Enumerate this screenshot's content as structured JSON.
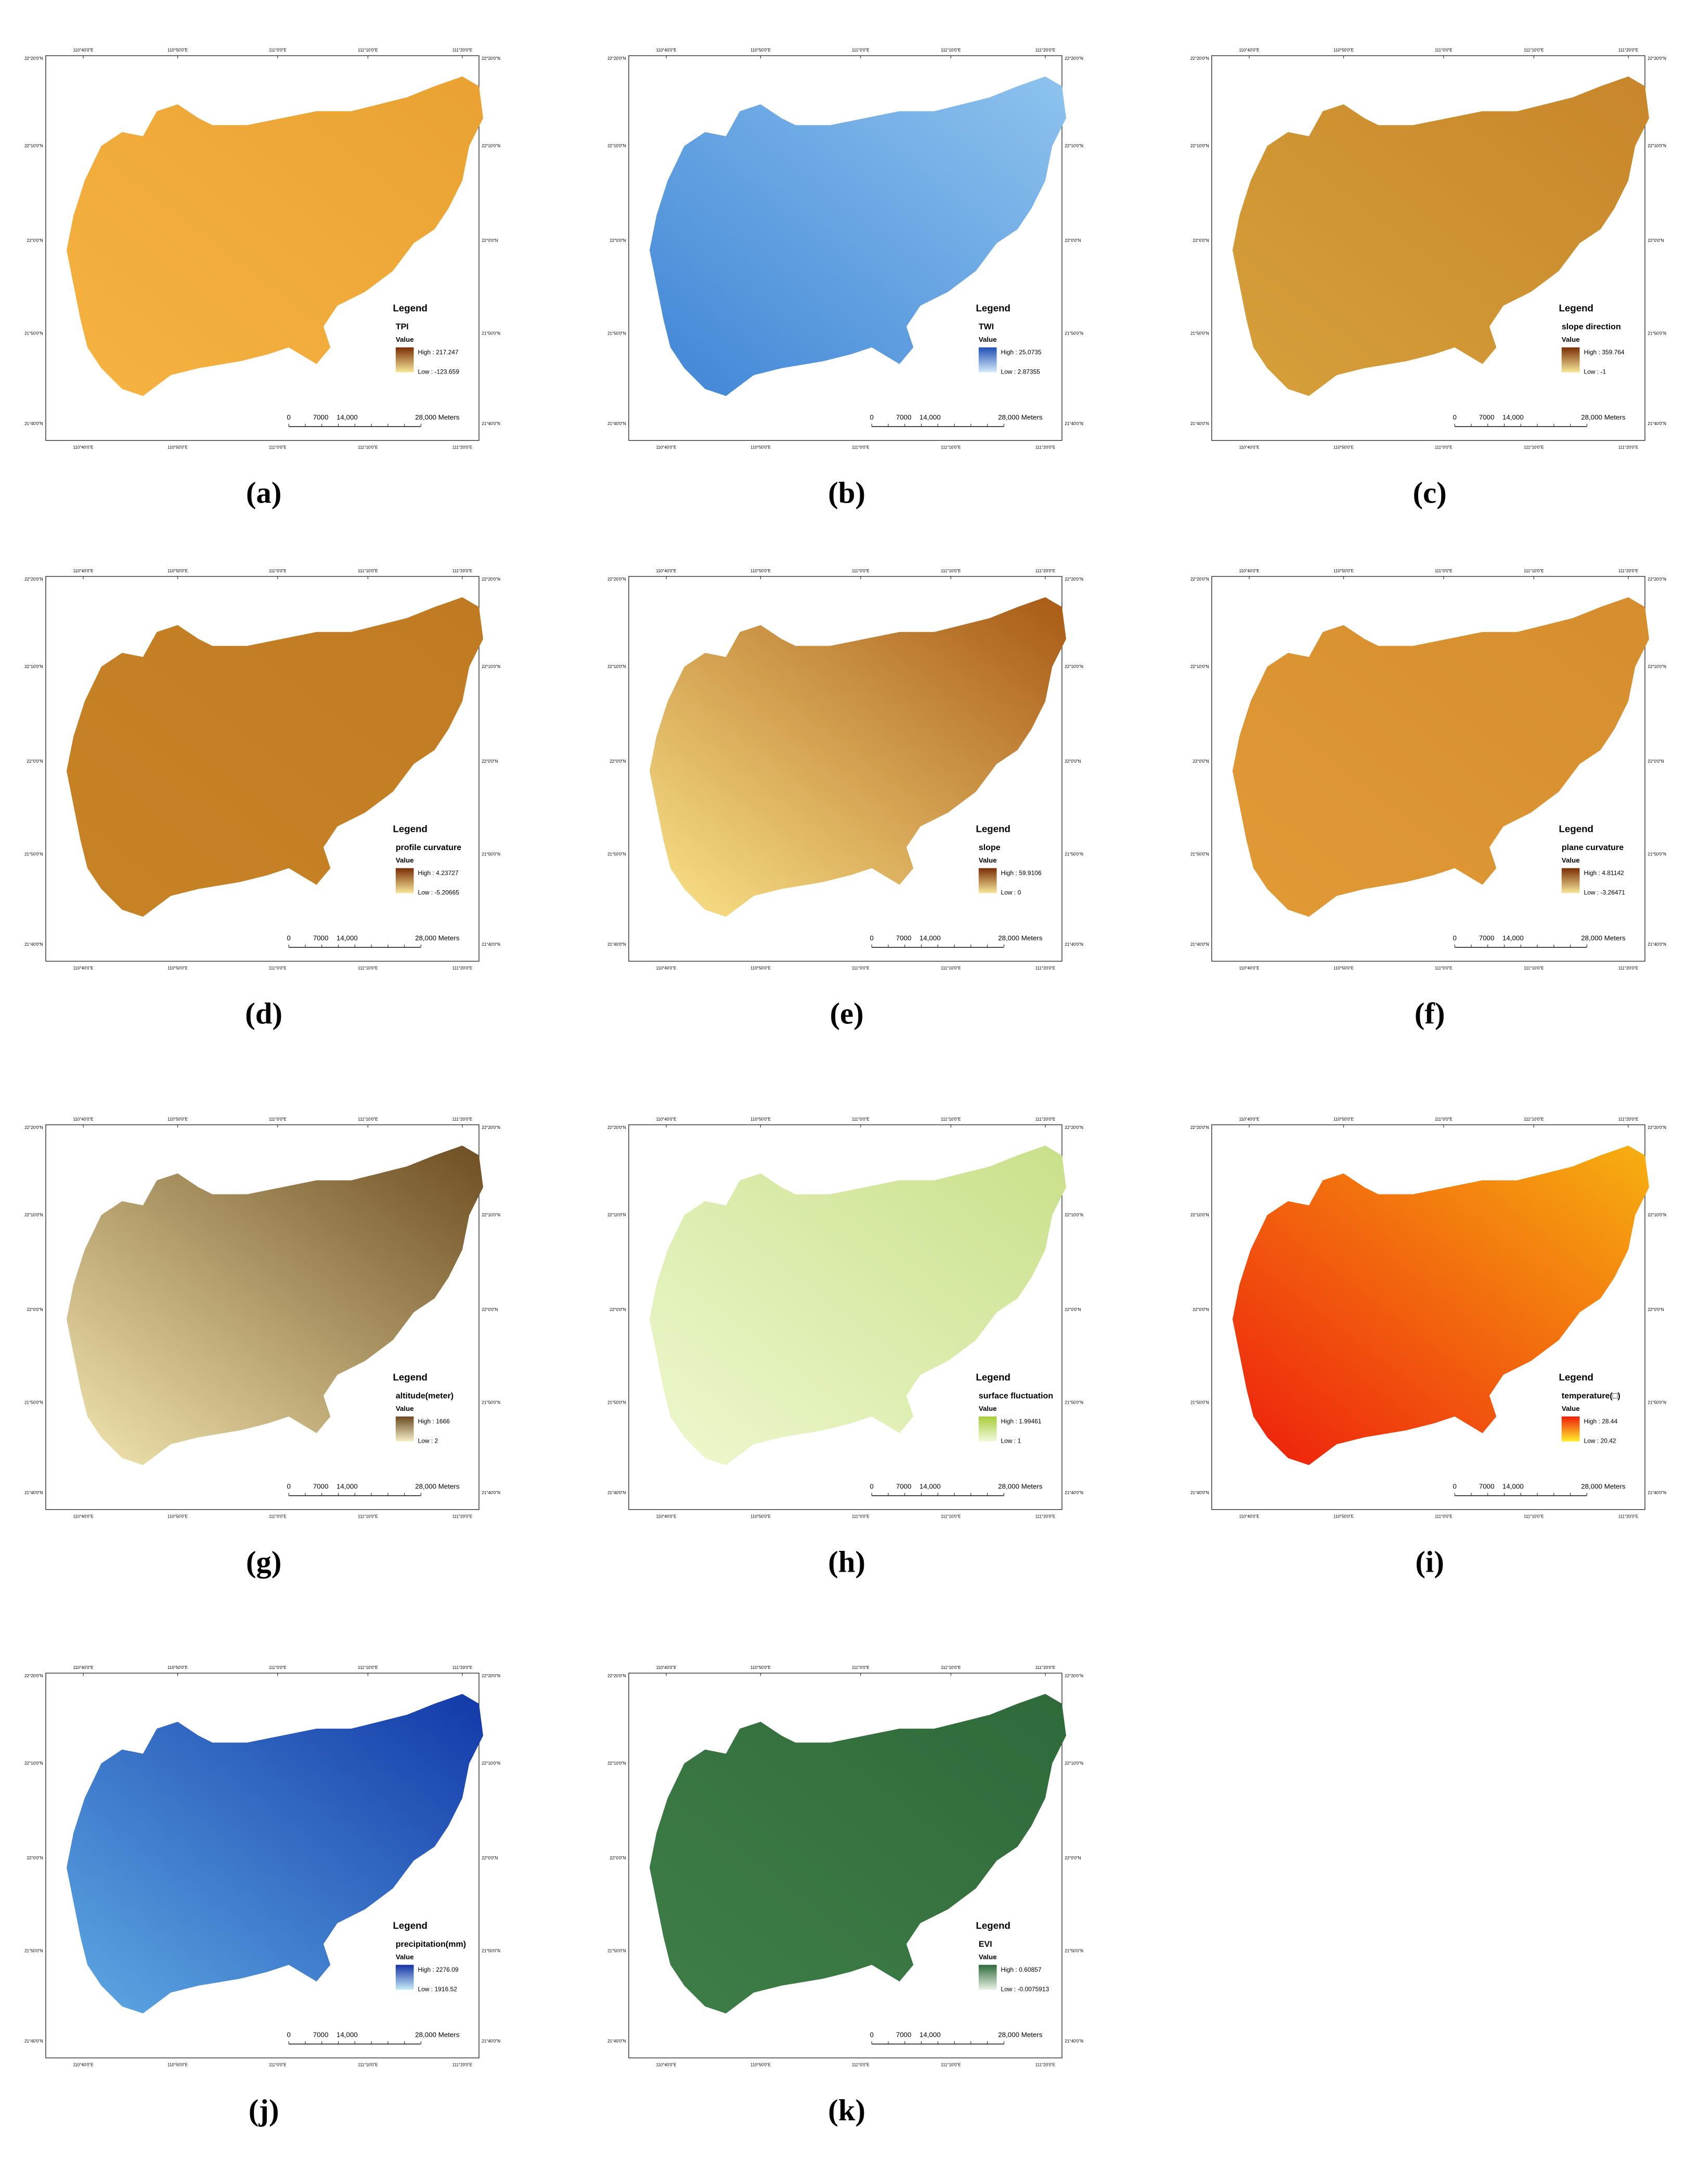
{
  "axes": {
    "lon": [
      "110°40'0\"E",
      "110°50'0\"E",
      "111°0'0\"E",
      "111°10'0\"E",
      "111°20'0\"E"
    ],
    "lat": [
      "22°20'0\"N",
      "22°10'0\"N",
      "22°0'0\"N",
      "21°50'0\"N",
      "21°40'0\"N"
    ]
  },
  "scale_bar": [
    "0",
    "7000",
    "14,000",
    "28,000 Meters"
  ],
  "panels": [
    {
      "caption": "(a)",
      "legend": "Legend",
      "layer": "TPI",
      "value": "Value",
      "high": "High : 217.247",
      "low": "Low : -123.659",
      "map_colors": [
        "#f6b341",
        "#e9a232"
      ],
      "ramp": [
        "#f8e79a",
        "#7a2e05"
      ]
    },
    {
      "caption": "(b)",
      "legend": "Legend",
      "layer": "TWI",
      "value": "Value",
      "high": "High : 25.0735",
      "low": "Low : 2.87355",
      "map_colors": [
        "#3f85d6",
        "#8ec3ee"
      ],
      "ramp": [
        "#d6ecfb",
        "#1f4fb3"
      ]
    },
    {
      "caption": "(c)",
      "legend": "Legend",
      "layer": "slope direction",
      "value": "Value",
      "high": "High : 359.764",
      "low": "Low : -1",
      "map_colors": [
        "#d6a03a",
        "#c7862a"
      ],
      "ramp": [
        "#f8e79a",
        "#7a2e05"
      ]
    },
    {
      "caption": "(d)",
      "legend": "Legend",
      "layer": "profile curvature",
      "value": "Value",
      "high": "High : 4.23727",
      "low": "Low : -5.20665",
      "map_colors": [
        "#c98326",
        "#c07a22"
      ],
      "ramp": [
        "#f8e79a",
        "#7a2e05"
      ]
    },
    {
      "caption": "(e)",
      "legend": "Legend",
      "layer": "slope",
      "value": "Value",
      "high": "High : 59.9106",
      "low": "Low : 0",
      "map_colors": [
        "#fbe48a",
        "#a85a14"
      ],
      "ramp": [
        "#f8e79a",
        "#7a2e05"
      ]
    },
    {
      "caption": "(f)",
      "legend": "Legend",
      "layer": "plane curvature",
      "value": "Value",
      "high": "High : 4.81142",
      "low": "Low : -3.26471",
      "map_colors": [
        "#e19a36",
        "#d58d2e"
      ],
      "ramp": [
        "#f8e79a",
        "#7a2e05"
      ]
    },
    {
      "caption": "(g)",
      "legend": "Legend",
      "layer": "altitude(meter)",
      "value": "Value",
      "high": "High : 1666",
      "low": "Low : 2",
      "map_colors": [
        "#f3e7b0",
        "#6e4e22"
      ],
      "ramp": [
        "#f6efc7",
        "#6a4a20"
      ]
    },
    {
      "caption": "(h)",
      "legend": "Legend",
      "layer": "surface fluctuation",
      "value": "Value",
      "high": "High : 1.99461",
      "low": "Low : 1",
      "map_colors": [
        "#eef8cf",
        "#c9e08a"
      ],
      "ramp": [
        "#f2fadc",
        "#a8cc3a"
      ]
    },
    {
      "caption": "(i)",
      "legend": "Legend",
      "layer": "temperature(□)",
      "value": "Value",
      "high": "High : 28.44",
      "low": "Low : 20.42",
      "map_colors": [
        "#ee1c0c",
        "#f6b010"
      ],
      "ramp": [
        "#fff02a",
        "#ee1c0c"
      ]
    },
    {
      "caption": "(j)",
      "legend": "Legend",
      "layer": "precipitation(mm)",
      "value": "Value",
      "high": "High : 2276.09",
      "low": "Low : 1916.52",
      "map_colors": [
        "#5ea9e4",
        "#1239a8"
      ],
      "ramp": [
        "#c9ecf8",
        "#1533a6"
      ]
    },
    {
      "caption": "(k)",
      "legend": "Legend",
      "layer": "EVI",
      "value": "Value",
      "high": "High : 0.60857",
      "low": "Low : -0.0075913",
      "map_colors": [
        "#3f7e48",
        "#2f6a3a"
      ],
      "ramp": [
        "#e9f2e6",
        "#2e6b3a"
      ]
    }
  ]
}
